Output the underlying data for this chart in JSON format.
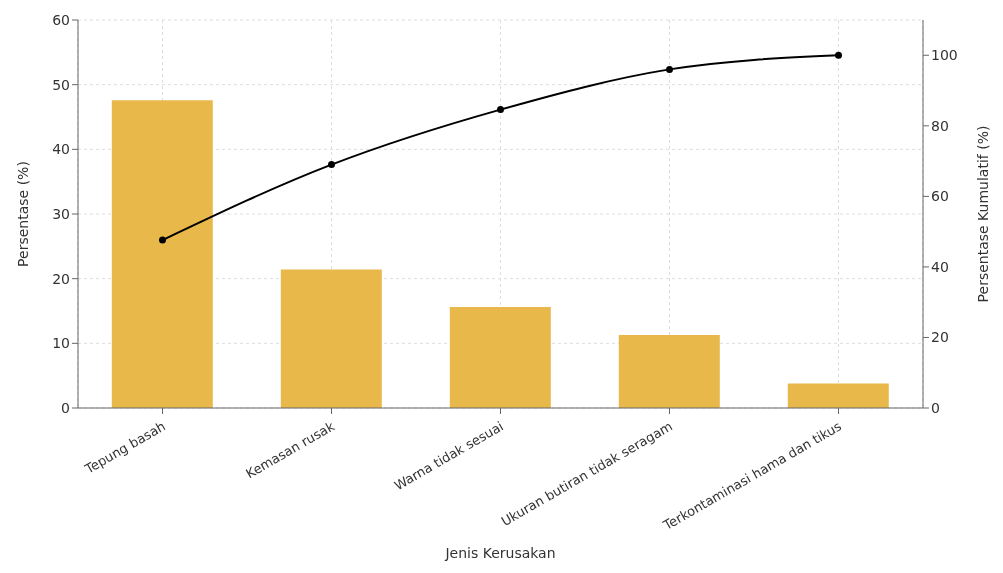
{
  "chart_data": {
    "type": "bar",
    "xlabel": "Jenis Kerusakan",
    "ylabel": "Persentase (%)",
    "y2label": "Persentase Kumulatif (%)",
    "categories": [
      "Tepung basah",
      "Kemasan rusak",
      "Warna tidak sesuai",
      "Ukuran butiran tidak seragam",
      "Terkontaminasi hama dan tikus"
    ],
    "series": [
      {
        "color": "#e9b84a",
        "values": [
          47.6,
          21.4,
          15.6,
          11.3,
          3.8
        ]
      },
      {
        "type": "line",
        "axis": "y2",
        "color": "#000000",
        "values": [
          47.6,
          69,
          84.6,
          96,
          100
        ]
      }
    ],
    "ylim": [
      0,
      60
    ],
    "yticks": [
      0,
      10,
      20,
      30,
      40,
      50,
      60
    ],
    "y2lim": [
      0,
      110
    ],
    "y2ticks": [
      0,
      20,
      40,
      60,
      80,
      100
    ],
    "grid": true,
    "marker": "circle",
    "line_style": "solid"
  }
}
